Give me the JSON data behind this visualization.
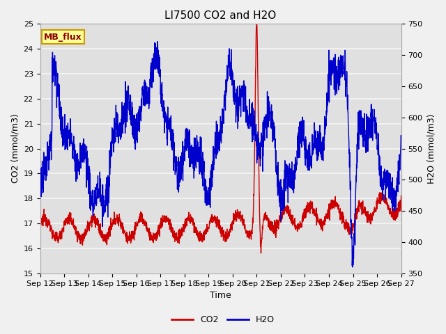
{
  "title": "LI7500 CO2 and H2O",
  "xlabel": "Time",
  "ylabel_left": "CO2 (mmol/m3)",
  "ylabel_right": "H2O (mmol/m3)",
  "xlim": [
    0,
    15
  ],
  "ylim_left": [
    15.0,
    25.0
  ],
  "ylim_right": [
    350,
    750
  ],
  "yticks_left": [
    15.0,
    16.0,
    17.0,
    18.0,
    19.0,
    20.0,
    21.0,
    22.0,
    23.0,
    24.0,
    25.0
  ],
  "yticks_right": [
    350,
    400,
    450,
    500,
    550,
    600,
    650,
    700,
    750
  ],
  "xtick_labels": [
    "Sep 12",
    "Sep 13",
    "Sep 14",
    "Sep 15",
    "Sep 16",
    "Sep 17",
    "Sep 18",
    "Sep 19",
    "Sep 20",
    "Sep 21",
    "Sep 22",
    "Sep 23",
    "Sep 24",
    "Sep 25",
    "Sep 26",
    "Sep 27"
  ],
  "co2_color": "#cc0000",
  "h2o_color": "#0000cc",
  "plot_bg_color": "#e0e0e0",
  "grid_color": "#f5f5f5",
  "fig_bg_color": "#f0f0f0",
  "annotation_text": "MB_flux",
  "annotation_bg": "#ffff99",
  "annotation_border": "#cc9900",
  "title_fontsize": 11,
  "axis_label_fontsize": 9,
  "tick_fontsize": 8,
  "legend_fontsize": 9,
  "linewidth": 1.0
}
